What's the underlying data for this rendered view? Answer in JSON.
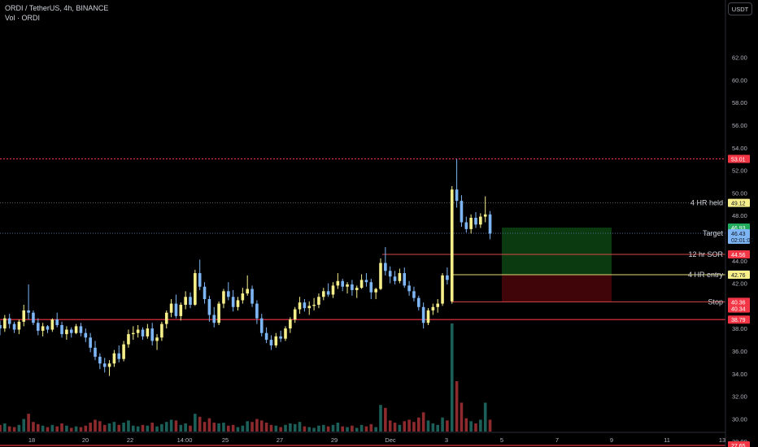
{
  "header": {
    "symbol_line": "ORDI / TetherUS, 4h, BINANCE",
    "indicator_line": "Vol · ORDI",
    "currency_button": "USDT"
  },
  "colors": {
    "background": "#000000",
    "up": "#f7f08a",
    "down": "#7eb6f5",
    "vol_up": "#1c5e58",
    "vol_down": "#8c2a2e",
    "red_line": "#f23645",
    "profit_zone": "#0c3a10",
    "loss_zone": "#3f0508",
    "axis_text": "#b2b5be",
    "label_text": "#d1d4dc"
  },
  "chart_data": {
    "type": "candlestick",
    "timeframe": "4h",
    "x_axis_ticks": [
      "18",
      "20",
      "22",
      "25",
      "14:00",
      "25",
      "27",
      "29",
      "Dec",
      "3",
      "5",
      "7",
      "9",
      "11",
      "13"
    ],
    "y_axis_ticks": [
      62,
      60,
      58,
      56,
      54,
      52,
      50,
      48,
      46,
      44,
      42,
      40,
      38,
      36,
      34,
      32,
      30,
      28
    ],
    "ylim": [
      27.4,
      64.2
    ],
    "price_labels": [
      {
        "text": "53.01",
        "value": 53.01,
        "style": "red"
      },
      {
        "text": "49.12",
        "value": 49.12,
        "style": "yellow"
      },
      {
        "text": "46.93",
        "value": 46.93,
        "style": "green"
      },
      {
        "text": "46.43",
        "value": 46.43,
        "style": "blue"
      },
      {
        "text": "02:01:00",
        "value": 46.43,
        "style": "blue-sub"
      },
      {
        "text": "44.56",
        "value": 44.56,
        "style": "red"
      },
      {
        "text": "42.80",
        "value": 42.8,
        "style": "gray"
      },
      {
        "text": "42.76",
        "value": 42.76,
        "style": "yellow"
      },
      {
        "text": "40.36",
        "value": 40.36,
        "style": "red"
      },
      {
        "text": "40.34",
        "value": 40.34,
        "style": "red-sub"
      },
      {
        "text": "38.79",
        "value": 38.79,
        "style": "red"
      },
      {
        "text": "27.65",
        "value": 27.65,
        "style": "red"
      }
    ],
    "annotations": [
      {
        "text": "4 HR held",
        "value": 49.12
      },
      {
        "text": "Target",
        "value": 46.43
      },
      {
        "text": "12 hr SOR",
        "value": 44.56
      },
      {
        "text": "4 HR entry",
        "value": 42.76
      },
      {
        "text": "Stop",
        "value": 40.36
      }
    ],
    "levels": [
      {
        "value": 53.01,
        "style": "red-dotted"
      },
      {
        "value": 49.12,
        "style": "gray-dotted"
      },
      {
        "value": 46.43,
        "style": "blue-dotted"
      },
      {
        "value": 38.79,
        "style": "red-solid"
      },
      {
        "value": 27.65,
        "style": "red-solid"
      }
    ],
    "position": {
      "entry": 42.76,
      "target": 46.93,
      "stop": 40.34
    },
    "candles": [
      [
        38.3,
        38.7,
        37.4,
        38.0
      ],
      [
        38.0,
        39.2,
        37.7,
        38.9
      ],
      [
        38.9,
        39.3,
        38.0,
        38.4
      ],
      [
        38.4,
        38.6,
        37.6,
        37.9
      ],
      [
        37.9,
        38.8,
        37.5,
        38.6
      ],
      [
        38.6,
        40.1,
        38.2,
        39.6
      ],
      [
        39.6,
        41.9,
        38.8,
        39.4
      ],
      [
        39.4,
        39.6,
        38.3,
        38.5
      ],
      [
        38.5,
        38.9,
        37.4,
        37.8
      ],
      [
        37.8,
        38.5,
        37.3,
        38.2
      ],
      [
        38.2,
        38.3,
        37.6,
        37.9
      ],
      [
        37.9,
        38.9,
        37.7,
        38.8
      ],
      [
        38.8,
        39.4,
        38.1,
        38.3
      ],
      [
        38.3,
        38.6,
        37.2,
        37.5
      ],
      [
        37.5,
        38.2,
        37.0,
        37.9
      ],
      [
        37.9,
        38.1,
        37.2,
        37.6
      ],
      [
        37.6,
        38.4,
        37.5,
        38.2
      ],
      [
        38.2,
        38.5,
        37.3,
        37.6
      ],
      [
        37.6,
        38.0,
        36.8,
        37.2
      ],
      [
        37.2,
        37.6,
        35.9,
        36.3
      ],
      [
        36.3,
        36.9,
        35.2,
        35.5
      ],
      [
        35.5,
        35.8,
        34.4,
        34.9
      ],
      [
        34.9,
        35.4,
        34.1,
        34.6
      ],
      [
        34.6,
        35.2,
        33.8,
        34.9
      ],
      [
        34.9,
        36.1,
        34.6,
        35.8
      ],
      [
        35.8,
        36.5,
        35.0,
        35.3
      ],
      [
        35.3,
        36.9,
        35.1,
        36.6
      ],
      [
        36.6,
        37.9,
        36.3,
        37.5
      ],
      [
        37.5,
        38.2,
        37.0,
        37.6
      ],
      [
        37.6,
        38.3,
        37.2,
        37.9
      ],
      [
        37.9,
        38.1,
        37.0,
        37.3
      ],
      [
        37.3,
        38.4,
        37.1,
        38.0
      ],
      [
        38.0,
        38.5,
        36.5,
        36.9
      ],
      [
        36.9,
        37.5,
        36.1,
        37.2
      ],
      [
        37.2,
        38.6,
        36.9,
        38.4
      ],
      [
        38.4,
        39.6,
        38.0,
        39.4
      ],
      [
        39.4,
        40.6,
        39.0,
        40.2
      ],
      [
        40.2,
        41.0,
        38.9,
        39.1
      ],
      [
        39.1,
        40.3,
        38.7,
        40.1
      ],
      [
        40.1,
        41.3,
        39.7,
        40.8
      ],
      [
        40.8,
        41.2,
        39.8,
        40.1
      ],
      [
        40.1,
        43.2,
        40.0,
        42.9
      ],
      [
        42.9,
        44.1,
        41.4,
        41.7
      ],
      [
        41.7,
        42.1,
        40.2,
        40.6
      ],
      [
        40.6,
        40.9,
        38.6,
        39.2
      ],
      [
        39.2,
        39.9,
        38.1,
        38.5
      ],
      [
        38.5,
        40.4,
        38.3,
        40.2
      ],
      [
        40.2,
        41.5,
        39.8,
        41.3
      ],
      [
        41.3,
        42.1,
        40.5,
        40.8
      ],
      [
        40.8,
        41.4,
        39.5,
        39.9
      ],
      [
        39.9,
        40.8,
        39.6,
        40.5
      ],
      [
        40.5,
        41.6,
        40.2,
        41.1
      ],
      [
        41.1,
        42.7,
        40.9,
        41.5
      ],
      [
        41.5,
        41.8,
        39.9,
        40.2
      ],
      [
        40.2,
        40.5,
        38.4,
        38.9
      ],
      [
        38.9,
        39.3,
        37.3,
        37.6
      ],
      [
        37.6,
        38.1,
        36.7,
        37.0
      ],
      [
        37.0,
        37.4,
        36.1,
        36.5
      ],
      [
        36.5,
        37.6,
        36.3,
        37.3
      ],
      [
        37.3,
        37.8,
        36.8,
        37.1
      ],
      [
        37.1,
        38.2,
        36.9,
        38.0
      ],
      [
        38.0,
        39.0,
        37.6,
        38.8
      ],
      [
        38.8,
        39.9,
        38.5,
        39.7
      ],
      [
        39.7,
        40.8,
        39.3,
        40.3
      ],
      [
        40.3,
        40.6,
        39.5,
        39.8
      ],
      [
        39.8,
        40.4,
        39.2,
        40.0
      ],
      [
        40.0,
        40.7,
        39.6,
        40.1
      ],
      [
        40.1,
        41.1,
        39.8,
        40.8
      ],
      [
        40.8,
        41.6,
        40.5,
        41.3
      ],
      [
        41.3,
        42.0,
        40.8,
        41.0
      ],
      [
        41.0,
        42.1,
        40.7,
        41.8
      ],
      [
        41.8,
        42.9,
        41.5,
        42.2
      ],
      [
        42.2,
        42.4,
        41.3,
        41.7
      ],
      [
        41.7,
        42.1,
        41.1,
        41.9
      ],
      [
        41.9,
        42.3,
        40.9,
        41.4
      ],
      [
        41.4,
        41.8,
        40.7,
        41.6
      ],
      [
        41.6,
        42.8,
        41.5,
        42.3
      ],
      [
        42.3,
        42.9,
        41.7,
        42.1
      ],
      [
        42.1,
        42.4,
        40.6,
        41.2
      ],
      [
        41.2,
        41.6,
        40.6,
        41.5
      ],
      [
        41.5,
        44.2,
        41.4,
        43.8
      ],
      [
        43.8,
        45.2,
        42.7,
        43.1
      ],
      [
        43.1,
        43.5,
        42.0,
        42.6
      ],
      [
        42.6,
        43.1,
        41.9,
        42.2
      ],
      [
        42.2,
        43.3,
        42.0,
        42.9
      ],
      [
        42.9,
        43.4,
        41.6,
        41.8
      ],
      [
        41.8,
        42.2,
        40.9,
        41.3
      ],
      [
        41.3,
        41.7,
        40.4,
        40.7
      ],
      [
        40.7,
        40.9,
        39.6,
        39.9
      ],
      [
        39.9,
        40.3,
        38.0,
        38.5
      ],
      [
        38.5,
        39.8,
        38.3,
        39.6
      ],
      [
        39.6,
        40.2,
        39.2,
        39.9
      ],
      [
        39.9,
        40.6,
        39.4,
        40.2
      ],
      [
        40.2,
        42.9,
        40.0,
        42.7
      ],
      [
        42.7,
        43.4,
        41.9,
        42.3
      ],
      [
        40.4,
        50.6,
        40.2,
        50.3
      ],
      [
        50.3,
        53.0,
        48.7,
        49.3
      ],
      [
        49.3,
        49.8,
        47.0,
        47.4
      ],
      [
        47.4,
        47.9,
        46.5,
        46.8
      ],
      [
        46.8,
        48.1,
        46.4,
        47.8
      ],
      [
        47.8,
        48.3,
        46.9,
        47.2
      ],
      [
        47.2,
        48.2,
        46.9,
        47.9
      ],
      [
        47.9,
        49.7,
        47.4,
        48.1
      ],
      [
        48.1,
        48.4,
        45.9,
        46.4
      ]
    ],
    "volume": [
      [
        0.9,
        "d"
      ],
      [
        1.1,
        "u"
      ],
      [
        0.7,
        "d"
      ],
      [
        0.6,
        "d"
      ],
      [
        0.9,
        "u"
      ],
      [
        1.7,
        "u"
      ],
      [
        2.4,
        "d"
      ],
      [
        1.3,
        "d"
      ],
      [
        1.0,
        "d"
      ],
      [
        0.8,
        "u"
      ],
      [
        0.6,
        "d"
      ],
      [
        0.9,
        "u"
      ],
      [
        0.7,
        "d"
      ],
      [
        1.1,
        "d"
      ],
      [
        0.8,
        "u"
      ],
      [
        0.5,
        "d"
      ],
      [
        0.7,
        "u"
      ],
      [
        0.6,
        "d"
      ],
      [
        0.8,
        "d"
      ],
      [
        1.2,
        "d"
      ],
      [
        1.6,
        "d"
      ],
      [
        1.4,
        "d"
      ],
      [
        0.9,
        "d"
      ],
      [
        1.1,
        "u"
      ],
      [
        1.3,
        "u"
      ],
      [
        0.9,
        "d"
      ],
      [
        1.2,
        "u"
      ],
      [
        1.5,
        "u"
      ],
      [
        0.8,
        "u"
      ],
      [
        0.7,
        "u"
      ],
      [
        0.9,
        "d"
      ],
      [
        0.8,
        "u"
      ],
      [
        1.2,
        "d"
      ],
      [
        0.7,
        "u"
      ],
      [
        1.0,
        "u"
      ],
      [
        1.3,
        "u"
      ],
      [
        1.6,
        "u"
      ],
      [
        1.5,
        "d"
      ],
      [
        0.9,
        "u"
      ],
      [
        1.1,
        "u"
      ],
      [
        0.8,
        "d"
      ],
      [
        2.4,
        "u"
      ],
      [
        2.0,
        "d"
      ],
      [
        1.3,
        "d"
      ],
      [
        1.8,
        "d"
      ],
      [
        1.2,
        "d"
      ],
      [
        1.1,
        "u"
      ],
      [
        1.2,
        "u"
      ],
      [
        0.8,
        "d"
      ],
      [
        0.9,
        "d"
      ],
      [
        0.6,
        "u"
      ],
      [
        0.8,
        "u"
      ],
      [
        1.4,
        "u"
      ],
      [
        1.3,
        "d"
      ],
      [
        1.7,
        "d"
      ],
      [
        1.5,
        "d"
      ],
      [
        1.2,
        "d"
      ],
      [
        0.9,
        "d"
      ],
      [
        0.8,
        "u"
      ],
      [
        0.6,
        "d"
      ],
      [
        0.9,
        "u"
      ],
      [
        1.1,
        "u"
      ],
      [
        1.0,
        "u"
      ],
      [
        1.3,
        "u"
      ],
      [
        0.7,
        "d"
      ],
      [
        0.6,
        "u"
      ],
      [
        0.5,
        "u"
      ],
      [
        0.8,
        "u"
      ],
      [
        0.9,
        "u"
      ],
      [
        0.7,
        "d"
      ],
      [
        0.9,
        "u"
      ],
      [
        1.2,
        "u"
      ],
      [
        0.7,
        "d"
      ],
      [
        0.6,
        "u"
      ],
      [
        0.8,
        "d"
      ],
      [
        0.5,
        "u"
      ],
      [
        0.9,
        "u"
      ],
      [
        0.7,
        "d"
      ],
      [
        1.0,
        "d"
      ],
      [
        0.6,
        "u"
      ],
      [
        3.6,
        "u"
      ],
      [
        3.2,
        "d"
      ],
      [
        1.5,
        "d"
      ],
      [
        1.2,
        "d"
      ],
      [
        0.9,
        "u"
      ],
      [
        1.4,
        "d"
      ],
      [
        1.6,
        "d"
      ],
      [
        1.3,
        "d"
      ],
      [
        1.9,
        "d"
      ],
      [
        2.6,
        "d"
      ],
      [
        1.5,
        "u"
      ],
      [
        1.1,
        "u"
      ],
      [
        0.9,
        "u"
      ],
      [
        1.9,
        "u"
      ],
      [
        1.5,
        "d"
      ],
      [
        14.6,
        "u"
      ],
      [
        6.8,
        "d"
      ],
      [
        3.9,
        "d"
      ],
      [
        1.8,
        "d"
      ],
      [
        1.4,
        "u"
      ],
      [
        1.1,
        "d"
      ],
      [
        1.6,
        "u"
      ],
      [
        3.9,
        "u"
      ],
      [
        1.6,
        "d"
      ]
    ],
    "vol_max": 14.6
  }
}
